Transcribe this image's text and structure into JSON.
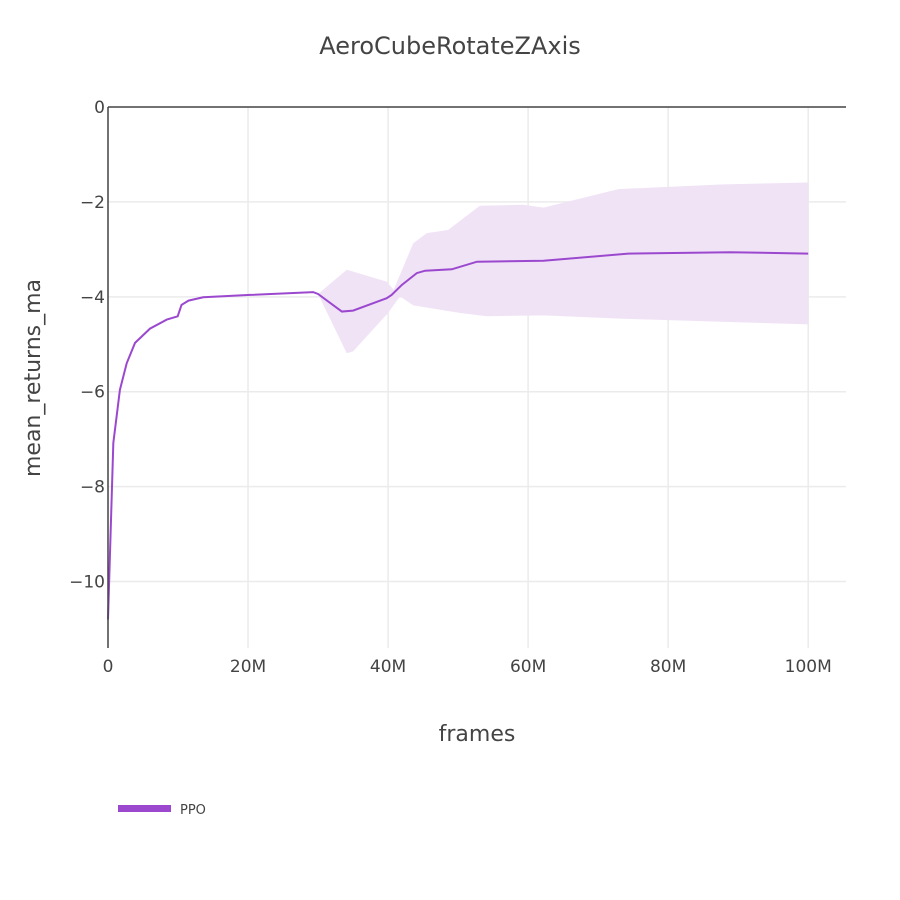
{
  "chart_data": {
    "type": "line",
    "title": "AeroCubeRotateZAxis",
    "xlabel": "frames",
    "ylabel": "mean_returns_ma",
    "xlim": [
      0,
      105400000
    ],
    "ylim": [
      -11.4,
      0
    ],
    "grid": true,
    "legend_position": "bottom-left",
    "x_ticks": [
      0,
      20000000,
      40000000,
      60000000,
      80000000,
      100000000
    ],
    "x_tick_labels": [
      "0",
      "20M",
      "40M",
      "60M",
      "80M",
      "100M"
    ],
    "y_ticks": [
      0,
      -2,
      -4,
      -6,
      -8,
      -10
    ],
    "y_tick_labels": [
      "0",
      "−2",
      "−4",
      "−6",
      "−8",
      "−10"
    ],
    "colors": {
      "line": "#9b48cf",
      "band": "#f0e3f6"
    },
    "series": [
      {
        "name": "PPO",
        "x": [
          0,
          760000,
          1700000,
          2670000,
          3860000,
          6000000,
          8400000,
          9950000,
          10500000,
          11500000,
          13600000,
          20300000,
          29300000,
          30000000,
          33400000,
          35000000,
          39800000,
          40500000,
          41960000,
          44100000,
          45300000,
          49100000,
          52700000,
          62200000,
          74300000,
          88900000,
          100000000
        ],
        "y": [
          -10.8,
          -7.08,
          -5.96,
          -5.4,
          -4.97,
          -4.67,
          -4.48,
          -4.41,
          -4.17,
          -4.08,
          -4.01,
          -3.96,
          -3.9,
          -3.94,
          -4.31,
          -4.29,
          -4.03,
          -3.96,
          -3.75,
          -3.5,
          -3.45,
          -3.42,
          -3.26,
          -3.24,
          -3.09,
          -3.06,
          -3.09
        ],
        "band_upper": {
          "x": [
            30000000,
            34100000,
            39800000,
            40800000,
            43600000,
            45500000,
            48600000,
            53100000,
            59300000,
            62200000,
            72900000,
            87900000,
            100000000
          ],
          "y": [
            -3.94,
            -3.43,
            -3.68,
            -3.85,
            -2.87,
            -2.66,
            -2.59,
            -2.08,
            -2.06,
            -2.12,
            -1.73,
            -1.63,
            -1.59
          ]
        },
        "band_lower": {
          "x": [
            30000000,
            34100000,
            35000000,
            40000000,
            41700000,
            43600000,
            50300000,
            54100000,
            62200000,
            73100000,
            100000000
          ],
          "y": [
            -3.94,
            -5.19,
            -5.15,
            -4.34,
            -3.99,
            -4.18,
            -4.34,
            -4.41,
            -4.39,
            -4.46,
            -4.58
          ]
        }
      }
    ]
  }
}
